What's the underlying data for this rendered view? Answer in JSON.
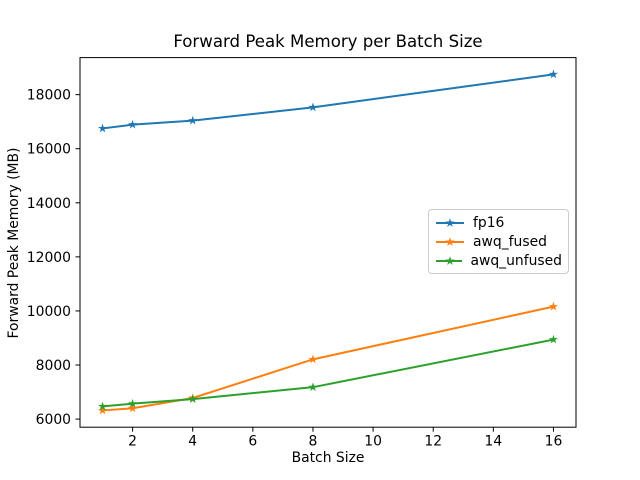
{
  "figure": {
    "background": "#ffffff",
    "spine_color": "#000000"
  },
  "chart_data": {
    "type": "line",
    "title": "Forward Peak Memory per Batch Size",
    "xlabel": "Batch Size",
    "ylabel": "Forward Peak Memory (MB)",
    "x": [
      1,
      2,
      4,
      8,
      16
    ],
    "series": [
      {
        "name": "fp16",
        "color": "#1f77b4",
        "values": [
          16750,
          16890,
          17040,
          17530,
          18750
        ]
      },
      {
        "name": "awq_fused",
        "color": "#ff7f0e",
        "values": [
          6320,
          6400,
          6780,
          8210,
          10160
        ]
      },
      {
        "name": "awq_unfused",
        "color": "#2ca02c",
        "values": [
          6470,
          6570,
          6740,
          7180,
          8940
        ]
      }
    ],
    "marker": "star",
    "xlim": [
      0.25,
      16.75
    ],
    "ylim": [
      5700,
      19370
    ],
    "xticks": [
      2,
      4,
      6,
      8,
      10,
      12,
      14,
      16
    ],
    "yticks": [
      6000,
      8000,
      10000,
      12000,
      14000,
      16000,
      18000
    ],
    "grid": false,
    "legend_position": "center right"
  }
}
